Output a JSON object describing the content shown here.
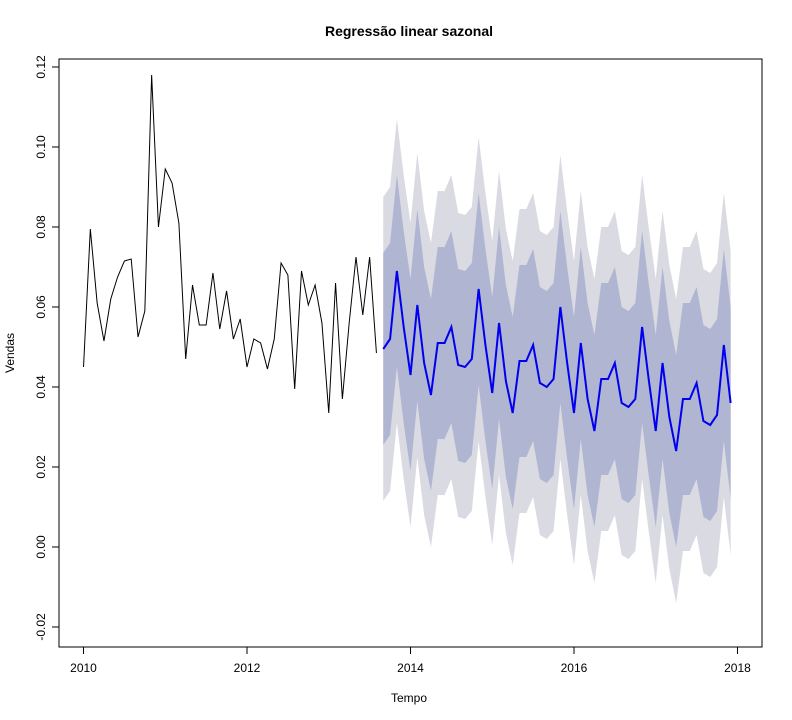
{
  "chart_data": {
    "type": "line",
    "title": "Regressão linear sazonal",
    "xlabel": "Tempo",
    "ylabel": "Vendas",
    "xlim": [
      2009.7,
      2018.3
    ],
    "ylim": [
      -0.025,
      0.122
    ],
    "x_ticks": [
      2010,
      2012,
      2014,
      2016,
      2018
    ],
    "x_tick_labels": [
      "2010",
      "2012",
      "2014",
      "2016",
      "2018"
    ],
    "y_ticks": [
      -0.02,
      0.0,
      0.02,
      0.04,
      0.06,
      0.08,
      0.1,
      0.12
    ],
    "y_tick_labels": [
      "-0.02",
      "0.00",
      "0.02",
      "0.04",
      "0.06",
      "0.08",
      "0.10",
      "0.12"
    ],
    "grid": false,
    "legend": false,
    "colors": {
      "history": "#000000",
      "forecast": "#0000ee",
      "band_80": "#b0b5d2",
      "band_95": "#dadae3"
    },
    "history": {
      "start": 2010.0,
      "step": 0.08333,
      "values": [
        0.045,
        0.0795,
        0.061,
        0.0515,
        0.062,
        0.0675,
        0.0715,
        0.072,
        0.0525,
        0.059,
        0.118,
        0.08,
        0.0945,
        0.091,
        0.081,
        0.047,
        0.0655,
        0.0555,
        0.0555,
        0.0685,
        0.0545,
        0.064,
        0.052,
        0.057,
        0.045,
        0.052,
        0.051,
        0.0445,
        0.052,
        0.071,
        0.068,
        0.0395,
        0.069,
        0.0605,
        0.0655,
        0.056,
        0.0335,
        0.066,
        0.037,
        0.056,
        0.0725,
        0.058,
        0.0725,
        0.0485
      ]
    },
    "forecast": {
      "start": 2013.6667,
      "step": 0.08333,
      "mean": [
        0.0495,
        0.052,
        0.069,
        0.055,
        0.043,
        0.0605,
        0.046,
        0.038,
        0.051,
        0.051,
        0.055,
        0.0455,
        0.045,
        0.047,
        0.0645,
        0.0505,
        0.0385,
        0.056,
        0.0415,
        0.0335,
        0.0465,
        0.0465,
        0.0505,
        0.041,
        0.04,
        0.042,
        0.06,
        0.046,
        0.0335,
        0.051,
        0.037,
        0.029,
        0.042,
        0.042,
        0.046,
        0.036,
        0.035,
        0.037,
        0.055,
        0.0415,
        0.029,
        0.046,
        0.0325,
        0.024,
        0.037,
        0.037,
        0.041,
        0.0315,
        0.0305,
        0.033,
        0.0505,
        0.036
      ],
      "lo80_offset": 0.024,
      "hi80_offset": 0.024,
      "lo95_offset": 0.038,
      "hi95_offset": 0.038
    }
  }
}
